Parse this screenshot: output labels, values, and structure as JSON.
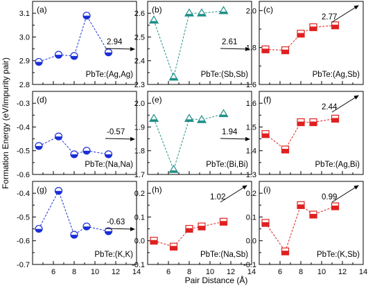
{
  "figure": {
    "xlabel": "Pair Distance (Å)",
    "ylabel": "Formation Energy (eV/impurity pair)"
  },
  "chart_data": [
    {
      "panel": "(a)",
      "label": "PbTe:(Ag,Ag)",
      "type": "line",
      "marker": "circle-half",
      "color": "#1a2fd6",
      "x": [
        4.6,
        6.5,
        8.0,
        9.2,
        11.3
      ],
      "y": [
        2.895,
        2.925,
        2.92,
        3.09,
        2.935
      ],
      "ylim": [
        2.8,
        3.15
      ],
      "yticks": [
        "2.8",
        "2.9",
        "3.0",
        "3.1"
      ],
      "xticks": [],
      "annotation": {
        "value": "2.94",
        "direction": "right"
      }
    },
    {
      "panel": "(b)",
      "label": "PbTe:(Sb,Sb)",
      "type": "line",
      "marker": "triangle",
      "color": "#1f8f87",
      "x": [
        4.6,
        6.5,
        8.0,
        9.2,
        11.3
      ],
      "y": [
        2.57,
        2.33,
        2.6,
        2.6,
        2.61
      ],
      "ylim": [
        2.3,
        2.65
      ],
      "yticks": [
        "2.3",
        "2.4",
        "2.5",
        "2.6"
      ],
      "xticks": [],
      "annotation": {
        "value": "2.61",
        "direction": "right"
      }
    },
    {
      "panel": "(c)",
      "label": "PbTe:(Ag,Sb)",
      "type": "line",
      "marker": "square",
      "color": "#e02020",
      "x": [
        4.6,
        6.5,
        8.0,
        9.2,
        11.3
      ],
      "y": [
        1.79,
        1.785,
        1.875,
        1.91,
        1.92
      ],
      "ylim": [
        1.6,
        2.05
      ],
      "yticks": [
        "1.6",
        "1.8",
        "2.0"
      ],
      "xticks": [],
      "annotation": {
        "value": "2.77",
        "direction": "up-right"
      }
    },
    {
      "panel": "(d)",
      "label": "PbTe:(Na,Na)",
      "type": "line",
      "marker": "circle-half",
      "color": "#1a2fd6",
      "x": [
        4.6,
        6.5,
        8.0,
        9.2,
        11.3
      ],
      "y": [
        -0.48,
        -0.44,
        -0.515,
        -0.5,
        -0.515
      ],
      "ylim": [
        -0.6,
        -0.25
      ],
      "yticks": [
        "-0.6",
        "-0.5",
        "-0.4",
        "-0.3"
      ],
      "xticks": [],
      "annotation": {
        "value": "-0.57",
        "direction": "right"
      }
    },
    {
      "panel": "(e)",
      "label": "PbTe:(Bi,Bi)",
      "type": "line",
      "marker": "triangle",
      "color": "#1f8f87",
      "x": [
        4.6,
        6.5,
        8.0,
        9.2,
        11.3
      ],
      "y": [
        1.935,
        1.72,
        1.935,
        1.93,
        1.955
      ],
      "ylim": [
        1.7,
        2.05
      ],
      "yticks": [
        "1.7",
        "1.8",
        "1.9",
        "2.0"
      ],
      "xticks": [],
      "annotation": {
        "value": "1.94",
        "direction": "right"
      }
    },
    {
      "panel": "(f)",
      "label": "PbTe:(Ag,Bi)",
      "type": "line",
      "marker": "square",
      "color": "#e02020",
      "x": [
        4.6,
        6.5,
        8.0,
        9.2,
        11.3
      ],
      "y": [
        1.47,
        1.405,
        1.52,
        1.52,
        1.535
      ],
      "ylim": [
        1.3,
        1.65
      ],
      "yticks": [
        "1.3",
        "1.4",
        "1.5",
        "1.6"
      ],
      "xticks": [],
      "annotation": {
        "value": "2.44",
        "direction": "up-right"
      }
    },
    {
      "panel": "(g)",
      "label": "PbTe:(K,K)",
      "type": "line",
      "marker": "circle-half",
      "color": "#1a2fd6",
      "x": [
        4.6,
        6.5,
        8.0,
        9.2,
        11.3
      ],
      "y": [
        -0.55,
        -0.39,
        -0.575,
        -0.54,
        -0.56
      ],
      "ylim": [
        -0.7,
        -0.35
      ],
      "yticks": [
        "-0.7",
        "-0.6",
        "-0.5",
        "-0.4"
      ],
      "xticks": [
        "6",
        "8",
        "10",
        "12",
        "14"
      ],
      "annotation": {
        "value": "-0.63",
        "direction": "right"
      }
    },
    {
      "panel": "(h)",
      "label": "PbTe:(Na,Sb)",
      "type": "line",
      "marker": "square",
      "color": "#e02020",
      "x": [
        4.6,
        6.5,
        8.0,
        9.2,
        11.3
      ],
      "y": [
        0.0,
        -0.025,
        0.05,
        0.06,
        0.08
      ],
      "ylim": [
        -0.1,
        0.25
      ],
      "yticks": [
        "-0.1",
        "0.0",
        "0.1",
        "0.2"
      ],
      "xticks": [
        "6",
        "8",
        "10",
        "12",
        "14"
      ],
      "annotation": {
        "value": "1.02",
        "direction": "up-right"
      }
    },
    {
      "panel": "(i)",
      "label": "PbTe:(K,Sb)",
      "type": "line",
      "marker": "square",
      "color": "#e02020",
      "x": [
        4.6,
        6.5,
        8.0,
        9.2,
        11.3
      ],
      "y": [
        0.075,
        -0.045,
        0.15,
        0.11,
        0.145
      ],
      "ylim": [
        -0.1,
        0.25
      ],
      "yticks": [
        "-0.1",
        "0.0",
        "0.1",
        "0.2"
      ],
      "xticks": [
        "6",
        "8",
        "10",
        "12",
        "14"
      ],
      "annotation": {
        "value": "0.99",
        "direction": "up-right"
      }
    }
  ]
}
